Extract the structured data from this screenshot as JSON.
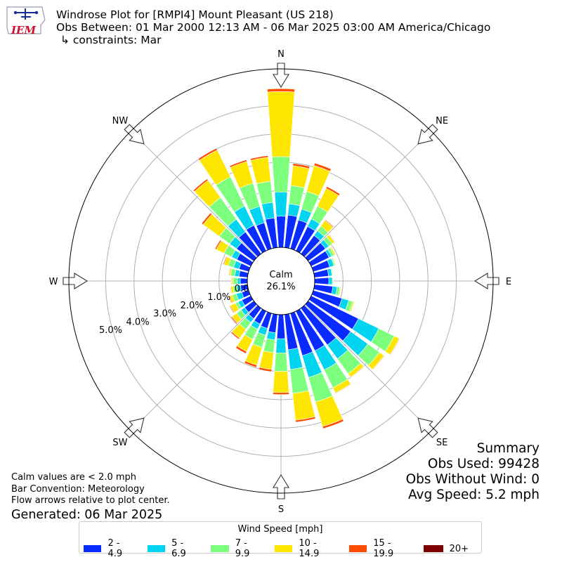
{
  "header": {
    "title_line1": "Windrose Plot for [RMPI4] Mount Pleasant (US 218)",
    "title_line2": "Obs Between: 01 Mar 2000 12:13 AM - 06 Mar 2025 03:00 AM America/Chicago",
    "title_line3": "↳ constraints: Mar",
    "logo_text": "IEM"
  },
  "summary": {
    "heading": "Summary",
    "obs_used": "Obs Used: 99428",
    "obs_without_wind": "Obs Without Wind: 0",
    "avg_speed": "Avg Speed: 5.2 mph"
  },
  "notes": {
    "calm_note": "Calm values are < 2.0 mph",
    "bar_convention": "Bar Convention: Meteorology",
    "flow_note": "Flow arrows relative to plot center.",
    "generated": "Generated: 06 Mar 2025"
  },
  "center": {
    "label": "Calm",
    "value": "26.1%"
  },
  "colors": {
    "bins": [
      "#0a2bff",
      "#00d4f0",
      "#7dff7d",
      "#ffe600",
      "#ff4a00",
      "#7f0000"
    ],
    "grid": "#b0b0b0"
  },
  "chart_data": {
    "type": "windrose",
    "legend_title": "Wind Speed [mph]",
    "speed_bins": [
      "2 - 4.9",
      "5 - 6.9",
      "7 - 9.9",
      "10 - 14.9",
      "15 - 19.9",
      "20+"
    ],
    "calm_percent": 26.1,
    "radial_ticks": [
      0,
      1,
      2,
      3,
      4,
      5
    ],
    "radial_tick_labels": [
      "0.0%",
      "1.0%",
      "2.0%",
      "3.0%",
      "4.0%",
      "5.0%"
    ],
    "rmax": 6.3,
    "compass_labels": [
      {
        "label": "N",
        "angle": 0
      },
      {
        "label": "NE",
        "angle": 45
      },
      {
        "label": "E",
        "angle": 90
      },
      {
        "label": "SE",
        "angle": 135
      },
      {
        "label": "S",
        "angle": 180
      },
      {
        "label": "SW",
        "angle": 225
      },
      {
        "label": "W",
        "angle": 270
      },
      {
        "label": "NW",
        "angle": 315
      }
    ],
    "directions": [
      0,
      10,
      20,
      30,
      40,
      50,
      60,
      70,
      80,
      90,
      100,
      110,
      120,
      130,
      140,
      150,
      160,
      170,
      180,
      190,
      200,
      210,
      220,
      230,
      240,
      250,
      260,
      270,
      280,
      290,
      300,
      310,
      320,
      330,
      340,
      350
    ],
    "cumulative": [
      [
        1.1,
        1.95,
        3.2,
        5.5,
        5.6,
        5.6
      ],
      [
        1.15,
        1.55,
        2.2,
        2.9,
        2.98,
        2.98
      ],
      [
        1.05,
        1.45,
        2.1,
        3.05,
        3.14,
        3.14
      ],
      [
        0.95,
        1.25,
        1.75,
        2.45,
        2.52,
        2.52
      ],
      [
        0.8,
        1.0,
        1.2,
        1.45,
        1.48,
        1.48
      ],
      [
        0.75,
        0.9,
        1.05,
        1.15,
        1.17,
        1.17
      ],
      [
        0.7,
        0.8,
        0.9,
        0.95,
        0.96,
        0.96
      ],
      [
        0.6,
        0.75,
        0.8,
        0.82,
        0.83,
        0.83
      ],
      [
        0.5,
        0.62,
        0.65,
        0.66,
        0.66,
        0.66
      ],
      [
        0.5,
        0.62,
        0.65,
        0.66,
        0.66,
        0.66
      ],
      [
        0.65,
        0.8,
        0.9,
        0.93,
        0.93,
        0.93
      ],
      [
        1.05,
        1.3,
        1.45,
        1.5,
        1.51,
        1.51
      ],
      [
        1.85,
        2.65,
        3.25,
        3.45,
        3.47,
        3.47
      ],
      [
        1.85,
        2.6,
        3.1,
        3.3,
        3.32,
        3.32
      ],
      [
        1.6,
        2.2,
        2.85,
        3.0,
        3.02,
        3.02
      ],
      [
        1.55,
        2.3,
        3.0,
        3.2,
        3.22,
        3.22
      ],
      [
        1.55,
        2.35,
        3.25,
        4.15,
        4.23,
        4.23
      ],
      [
        1.25,
        1.95,
        2.8,
        3.75,
        3.82,
        3.82
      ],
      [
        0.85,
        1.35,
        2.0,
        2.75,
        2.82,
        2.82
      ],
      [
        0.65,
        0.9,
        1.35,
        1.95,
        2.03,
        2.03
      ],
      [
        0.55,
        0.8,
        1.25,
        1.9,
        1.98,
        1.98
      ],
      [
        0.5,
        0.7,
        1.1,
        1.58,
        1.66,
        1.66
      ],
      [
        0.45,
        0.62,
        0.92,
        1.3,
        1.35,
        1.35
      ],
      [
        0.4,
        0.55,
        0.75,
        0.95,
        0.99,
        0.99
      ],
      [
        0.35,
        0.5,
        0.6,
        0.8,
        0.83,
        0.83
      ],
      [
        0.25,
        0.45,
        0.6,
        0.7,
        0.73,
        0.73
      ],
      [
        0.25,
        0.38,
        0.52,
        0.6,
        0.62,
        0.62
      ],
      [
        0.25,
        0.35,
        0.5,
        0.55,
        0.57,
        0.57
      ],
      [
        0.3,
        0.45,
        0.6,
        0.65,
        0.67,
        0.67
      ],
      [
        0.35,
        0.55,
        0.75,
        0.9,
        0.93,
        0.93
      ],
      [
        0.55,
        0.75,
        1.05,
        1.35,
        1.4,
        1.4
      ],
      [
        0.75,
        1.05,
        1.5,
        2.2,
        2.27,
        2.27
      ],
      [
        0.95,
        1.5,
        2.45,
        3.2,
        3.26,
        3.26
      ],
      [
        1.0,
        1.75,
        2.9,
        3.95,
        4.02,
        4.02
      ],
      [
        0.95,
        1.55,
        2.4,
        3.2,
        3.26,
        3.26
      ],
      [
        1.05,
        1.6,
        2.35,
        3.2,
        3.26,
        3.26
      ]
    ]
  }
}
